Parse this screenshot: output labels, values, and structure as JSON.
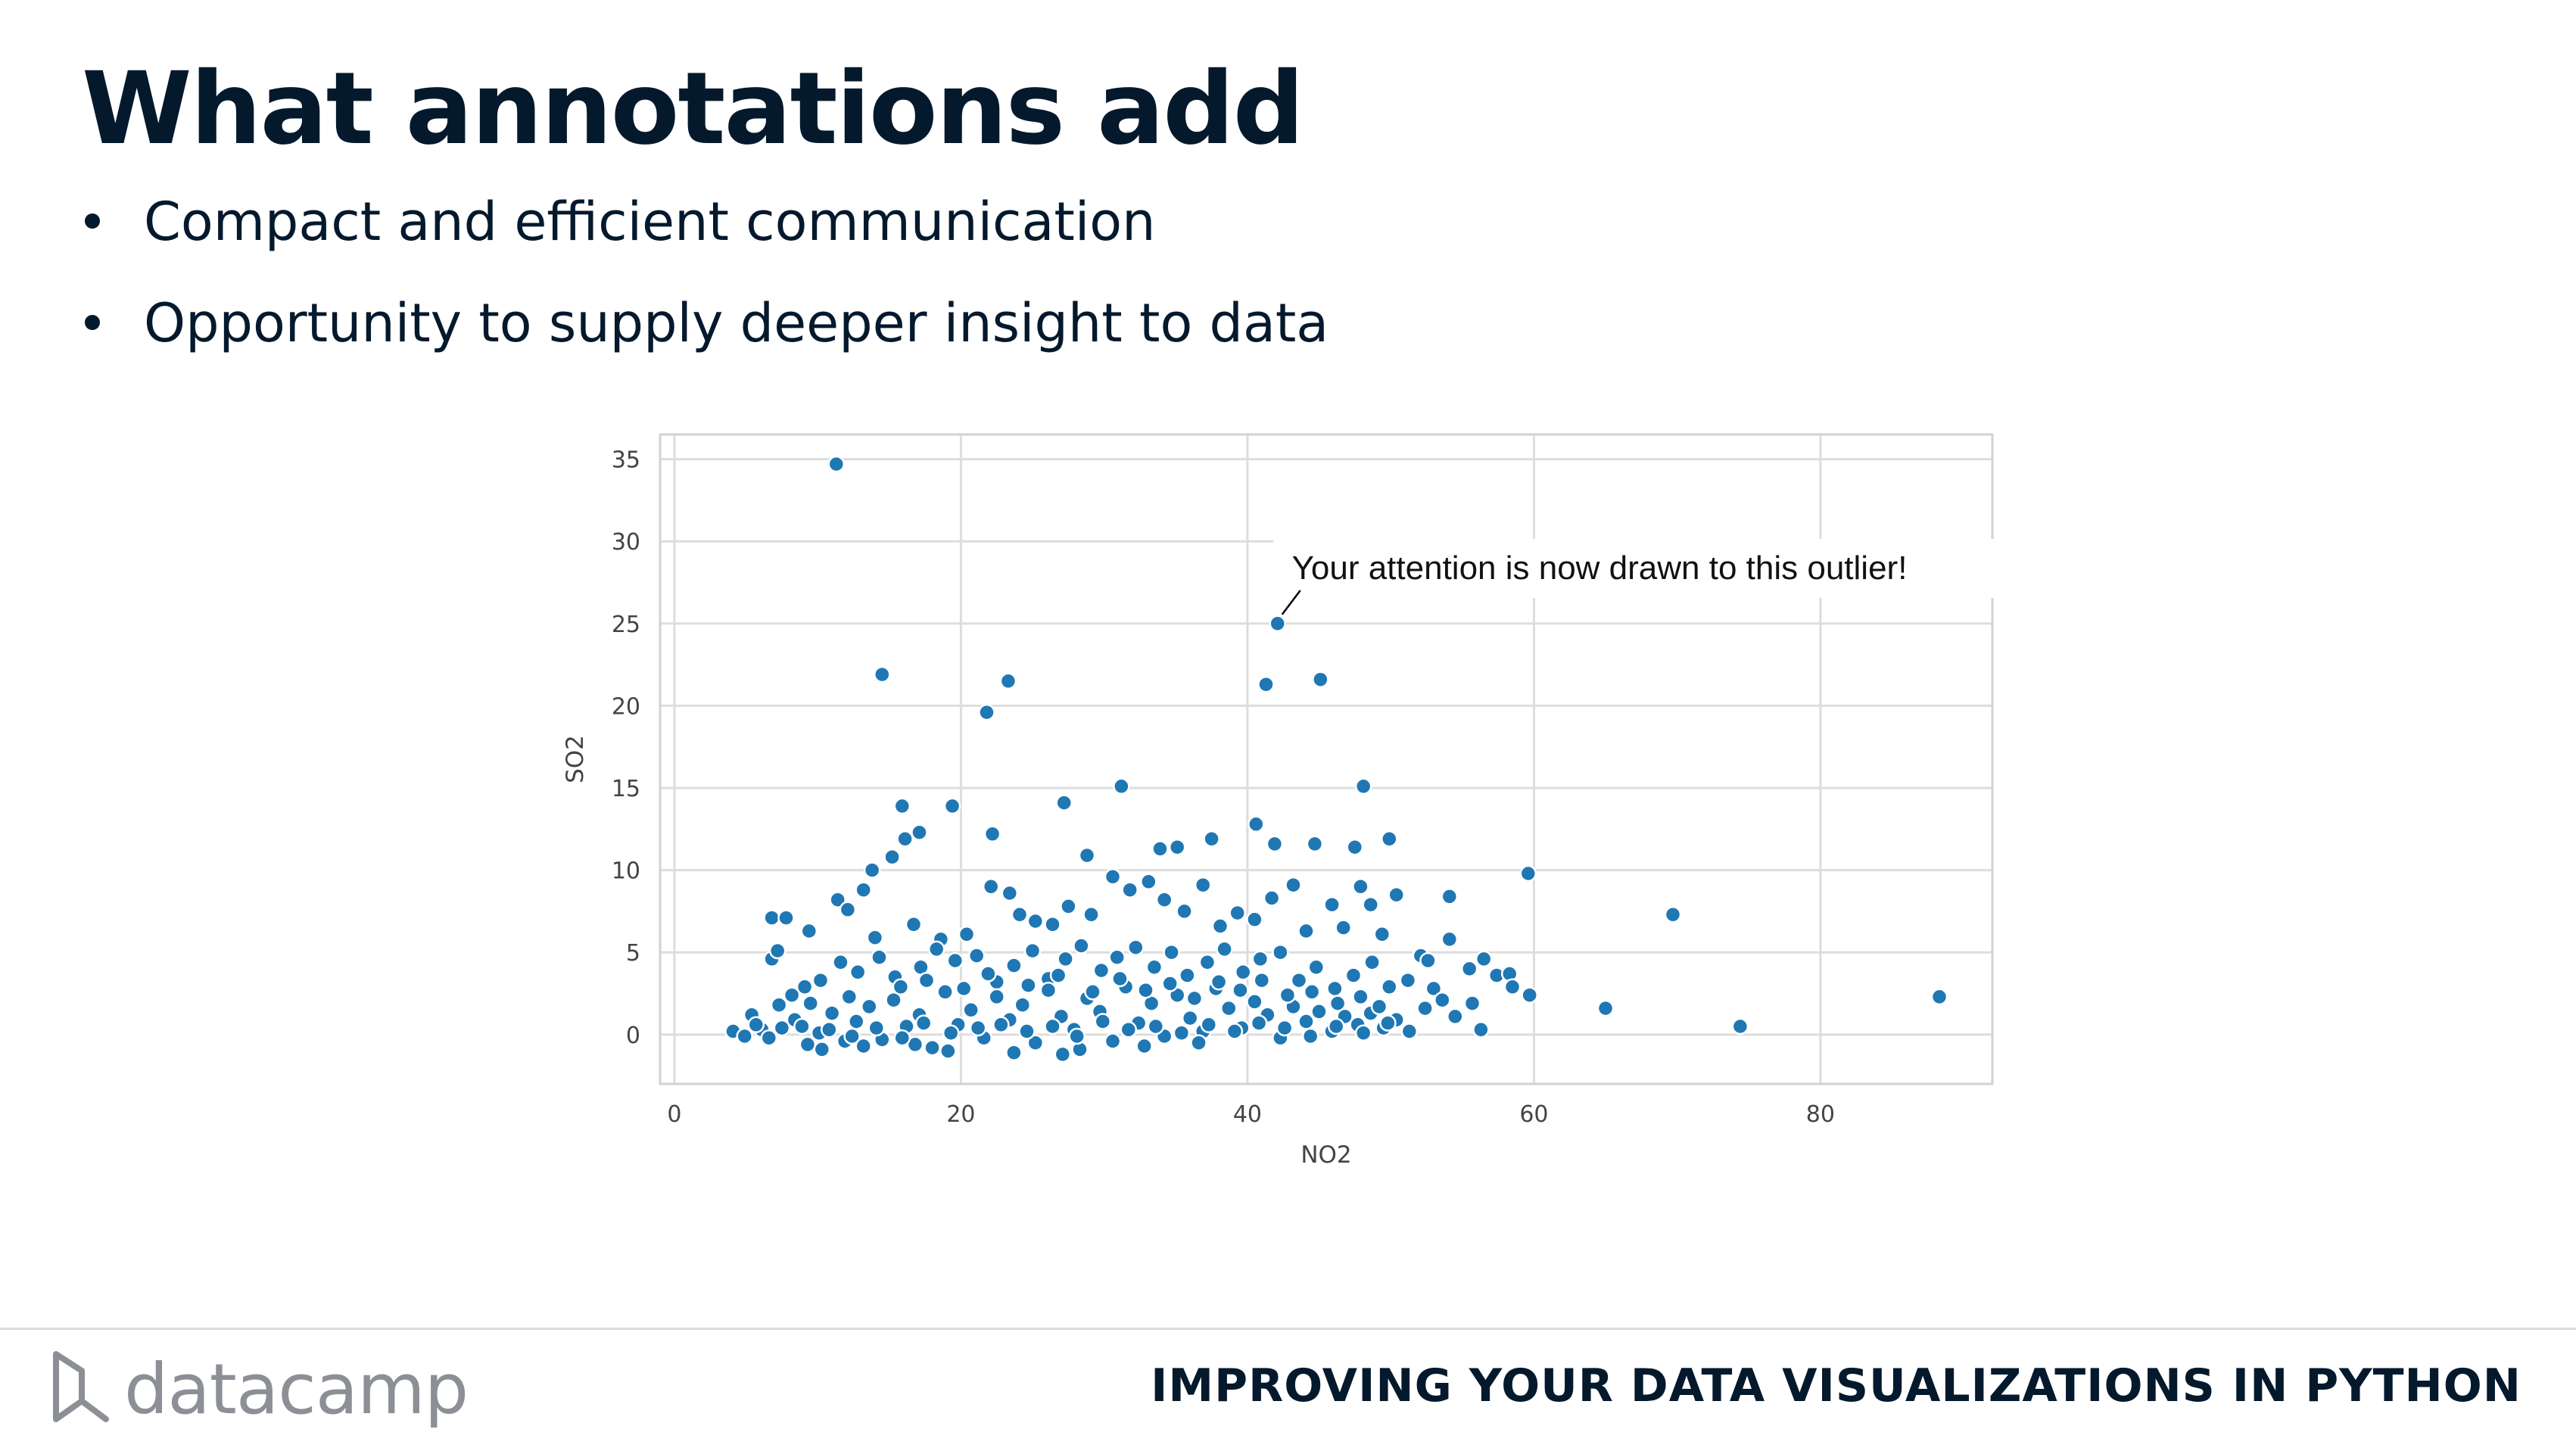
{
  "slide": {
    "title": "What annotations add",
    "bullets": [
      "Compact and efficient communication",
      "Opportunity to supply deeper insight to data"
    ],
    "footer_logo": "datacamp",
    "footer_course": "IMPROVING YOUR DATA VISUALIZATIONS IN PYTHON"
  },
  "icons": {
    "logo": "datacamp-logo-icon"
  },
  "colors": {
    "text": "#05192d",
    "marker": "#1f77b4",
    "grid": "#dddddd"
  },
  "chart_data": {
    "type": "scatter",
    "xlabel": "NO2",
    "ylabel": "SO2",
    "xlim": [
      -1,
      92
    ],
    "ylim": [
      -3,
      36.5
    ],
    "xticks": [
      0,
      20,
      40,
      60,
      80
    ],
    "yticks": [
      0,
      5,
      10,
      15,
      20,
      25,
      30,
      35
    ],
    "grid": true,
    "annotation": {
      "text": "Your attention is now drawn to this outlier!",
      "point": [
        42,
        25
      ],
      "text_pos": [
        43.1,
        28.4
      ]
    },
    "points": [
      [
        11.3,
        34.7
      ],
      [
        14.5,
        21.9
      ],
      [
        23.3,
        21.5
      ],
      [
        21.8,
        19.6
      ],
      [
        41.3,
        21.3
      ],
      [
        45.1,
        21.6
      ],
      [
        42.1,
        25.0
      ],
      [
        31.2,
        15.1
      ],
      [
        27.2,
        14.1
      ],
      [
        15.9,
        13.9
      ],
      [
        19.4,
        13.9
      ],
      [
        48.1,
        15.1
      ],
      [
        40.6,
        12.8
      ],
      [
        59.6,
        9.8
      ],
      [
        69.7,
        7.3
      ],
      [
        88.3,
        2.3
      ],
      [
        74.4,
        0.5
      ],
      [
        65.0,
        1.6
      ],
      [
        59.7,
        2.4
      ],
      [
        54.1,
        8.4
      ],
      [
        54.1,
        5.8
      ],
      [
        56.5,
        4.6
      ],
      [
        57.4,
        3.6
      ],
      [
        58.3,
        3.7
      ],
      [
        58.5,
        2.9
      ],
      [
        55.5,
        4.0
      ],
      [
        52.1,
        4.8
      ],
      [
        52.6,
        4.5
      ],
      [
        53.0,
        2.8
      ],
      [
        50.4,
        8.5
      ],
      [
        49.9,
        11.9
      ],
      [
        6.8,
        7.1
      ],
      [
        7.8,
        7.1
      ],
      [
        6.8,
        4.6
      ],
      [
        7.2,
        5.1
      ],
      [
        9.4,
        6.3
      ],
      [
        11.4,
        8.2
      ],
      [
        13.8,
        10.0
      ],
      [
        15.2,
        10.8
      ],
      [
        16.1,
        11.9
      ],
      [
        17.1,
        12.3
      ],
      [
        22.2,
        12.2
      ],
      [
        28.8,
        10.9
      ],
      [
        33.9,
        11.3
      ],
      [
        35.1,
        11.4
      ],
      [
        37.5,
        11.9
      ],
      [
        41.9,
        11.6
      ],
      [
        44.7,
        11.6
      ],
      [
        47.5,
        11.4
      ],
      [
        12.1,
        7.6
      ],
      [
        13.2,
        8.8
      ],
      [
        14.0,
        5.9
      ],
      [
        16.7,
        6.7
      ],
      [
        18.6,
        5.8
      ],
      [
        20.4,
        6.1
      ],
      [
        22.1,
        9.0
      ],
      [
        23.4,
        8.6
      ],
      [
        24.1,
        7.3
      ],
      [
        25.2,
        6.9
      ],
      [
        26.4,
        6.7
      ],
      [
        27.5,
        7.8
      ],
      [
        29.1,
        7.3
      ],
      [
        30.6,
        9.6
      ],
      [
        31.8,
        8.8
      ],
      [
        33.1,
        9.3
      ],
      [
        34.2,
        8.2
      ],
      [
        35.6,
        7.5
      ],
      [
        36.9,
        9.1
      ],
      [
        38.1,
        6.6
      ],
      [
        39.3,
        7.4
      ],
      [
        40.5,
        7.0
      ],
      [
        41.7,
        8.3
      ],
      [
        43.2,
        9.1
      ],
      [
        44.1,
        6.3
      ],
      [
        45.9,
        7.9
      ],
      [
        46.7,
        6.5
      ],
      [
        47.9,
        9.0
      ],
      [
        48.6,
        7.9
      ],
      [
        49.4,
        6.1
      ],
      [
        5.4,
        1.2
      ],
      [
        6.1,
        0.3
      ],
      [
        7.3,
        1.8
      ],
      [
        8.2,
        2.4
      ],
      [
        9.1,
        2.9
      ],
      [
        10.2,
        3.3
      ],
      [
        11.6,
        4.4
      ],
      [
        12.8,
        3.8
      ],
      [
        14.3,
        4.7
      ],
      [
        15.4,
        3.5
      ],
      [
        17.2,
        4.1
      ],
      [
        18.3,
        5.2
      ],
      [
        19.6,
        4.5
      ],
      [
        21.1,
        4.8
      ],
      [
        22.5,
        3.2
      ],
      [
        23.7,
        4.2
      ],
      [
        25.0,
        5.1
      ],
      [
        26.1,
        3.4
      ],
      [
        27.3,
        4.6
      ],
      [
        28.4,
        5.4
      ],
      [
        29.8,
        3.9
      ],
      [
        30.9,
        4.7
      ],
      [
        32.2,
        5.3
      ],
      [
        33.5,
        4.1
      ],
      [
        34.7,
        5.0
      ],
      [
        35.8,
        3.6
      ],
      [
        37.2,
        4.4
      ],
      [
        38.4,
        5.2
      ],
      [
        39.7,
        3.8
      ],
      [
        40.9,
        4.6
      ],
      [
        42.3,
        5.0
      ],
      [
        43.6,
        3.3
      ],
      [
        44.8,
        4.1
      ],
      [
        46.1,
        2.8
      ],
      [
        47.4,
        3.6
      ],
      [
        48.7,
        4.4
      ],
      [
        49.9,
        2.9
      ],
      [
        51.2,
        3.3
      ],
      [
        52.4,
        1.6
      ],
      [
        53.6,
        2.1
      ],
      [
        54.5,
        1.1
      ],
      [
        55.7,
        1.9
      ],
      [
        56.3,
        0.3
      ],
      [
        4.1,
        0.2
      ],
      [
        4.9,
        -0.1
      ],
      [
        5.7,
        0.6
      ],
      [
        6.6,
        -0.2
      ],
      [
        7.5,
        0.4
      ],
      [
        8.4,
        0.9
      ],
      [
        9.3,
        -0.6
      ],
      [
        10.1,
        0.1
      ],
      [
        11.0,
        1.3
      ],
      [
        11.9,
        -0.4
      ],
      [
        12.7,
        0.8
      ],
      [
        13.6,
        1.7
      ],
      [
        14.5,
        -0.3
      ],
      [
        15.3,
        2.1
      ],
      [
        16.2,
        0.5
      ],
      [
        17.1,
        1.2
      ],
      [
        18.0,
        -0.8
      ],
      [
        18.9,
        2.6
      ],
      [
        19.8,
        0.6
      ],
      [
        20.7,
        1.5
      ],
      [
        21.6,
        -0.2
      ],
      [
        22.5,
        2.3
      ],
      [
        23.4,
        0.9
      ],
      [
        24.3,
        1.8
      ],
      [
        25.2,
        -0.5
      ],
      [
        26.1,
        2.7
      ],
      [
        27.0,
        1.1
      ],
      [
        27.9,
        0.3
      ],
      [
        28.8,
        2.2
      ],
      [
        29.7,
        1.4
      ],
      [
        30.6,
        -0.4
      ],
      [
        31.5,
        2.9
      ],
      [
        32.4,
        0.7
      ],
      [
        33.3,
        1.9
      ],
      [
        34.2,
        -0.1
      ],
      [
        35.1,
        2.4
      ],
      [
        36.0,
        1.0
      ],
      [
        36.9,
        0.2
      ],
      [
        37.8,
        2.8
      ],
      [
        38.7,
        1.6
      ],
      [
        39.6,
        0.4
      ],
      [
        40.5,
        2.0
      ],
      [
        41.4,
        1.2
      ],
      [
        42.3,
        -0.2
      ],
      [
        43.2,
        1.7
      ],
      [
        44.1,
        0.8
      ],
      [
        45.0,
        1.4
      ],
      [
        45.9,
        0.2
      ],
      [
        46.8,
        1.1
      ],
      [
        47.7,
        0.6
      ],
      [
        48.6,
        1.3
      ],
      [
        49.5,
        0.4
      ],
      [
        50.4,
        0.9
      ],
      [
        51.3,
        0.2
      ],
      [
        10.3,
        -0.9
      ],
      [
        13.2,
        -0.7
      ],
      [
        16.8,
        -0.6
      ],
      [
        19.1,
        -1.0
      ],
      [
        23.7,
        -1.1
      ],
      [
        27.1,
        -1.2
      ],
      [
        28.3,
        -0.9
      ],
      [
        32.8,
        -0.7
      ],
      [
        36.6,
        -0.5
      ],
      [
        9.5,
        1.9
      ],
      [
        12.2,
        2.3
      ],
      [
        15.8,
        2.9
      ],
      [
        17.6,
        3.3
      ],
      [
        20.2,
        2.8
      ],
      [
        21.9,
        3.7
      ],
      [
        24.7,
        3.0
      ],
      [
        26.8,
        3.6
      ],
      [
        29.2,
        2.6
      ],
      [
        31.1,
        3.4
      ],
      [
        32.9,
        2.7
      ],
      [
        34.6,
        3.1
      ],
      [
        36.3,
        2.2
      ],
      [
        38.0,
        3.2
      ],
      [
        39.5,
        2.7
      ],
      [
        41.0,
        3.3
      ],
      [
        42.8,
        2.4
      ],
      [
        44.5,
        2.6
      ],
      [
        46.3,
        1.9
      ],
      [
        47.9,
        2.3
      ],
      [
        49.2,
        1.7
      ],
      [
        8.9,
        0.5
      ],
      [
        10.8,
        0.3
      ],
      [
        12.4,
        -0.1
      ],
      [
        14.1,
        0.4
      ],
      [
        15.9,
        -0.2
      ],
      [
        17.4,
        0.7
      ],
      [
        19.3,
        0.1
      ],
      [
        21.2,
        0.4
      ],
      [
        22.8,
        0.6
      ],
      [
        24.6,
        0.2
      ],
      [
        26.4,
        0.5
      ],
      [
        28.1,
        -0.1
      ],
      [
        29.9,
        0.8
      ],
      [
        31.7,
        0.3
      ],
      [
        33.6,
        0.5
      ],
      [
        35.4,
        0.1
      ],
      [
        37.3,
        0.6
      ],
      [
        39.1,
        0.2
      ],
      [
        40.8,
        0.7
      ],
      [
        42.6,
        0.4
      ],
      [
        44.4,
        -0.1
      ],
      [
        46.2,
        0.5
      ],
      [
        48.1,
        0.1
      ],
      [
        49.8,
        0.7
      ]
    ]
  }
}
